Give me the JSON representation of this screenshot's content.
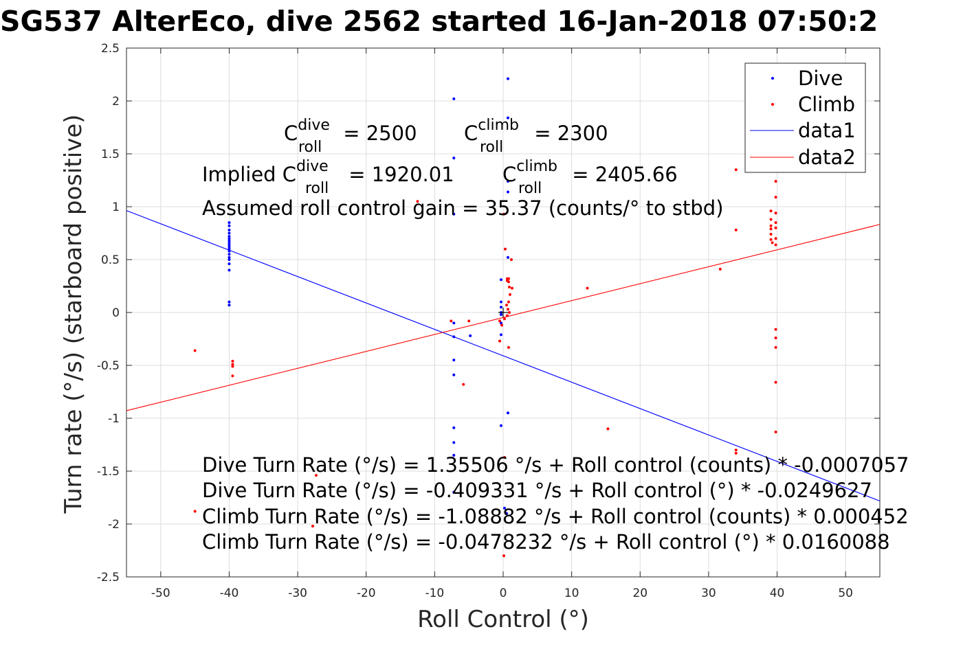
{
  "chart_data": {
    "type": "scatter",
    "title": "SG537 AlterEco, dive 2562 started 16-Jan-2018 07:50:2",
    "xlabel": "Roll Control (°)",
    "ylabel": "Turn rate (°/s) (starboard positive)",
    "xlim": [
      -55,
      55
    ],
    "ylim": [
      -2.5,
      2.5
    ],
    "xticks": [
      -50,
      -40,
      -30,
      -20,
      -10,
      0,
      10,
      20,
      30,
      40,
      50
    ],
    "yticks": [
      -2.5,
      -2,
      -1.5,
      -1,
      -0.5,
      0,
      0.5,
      1,
      1.5,
      2,
      2.5
    ],
    "grid": true,
    "legend_position": "top-right",
    "series": [
      {
        "name": "Dive",
        "kind": "points",
        "color": "#0000ff",
        "points": [
          [
            -40,
            0.85
          ],
          [
            -40,
            0.82
          ],
          [
            -40,
            0.78
          ],
          [
            -40,
            0.75
          ],
          [
            -40,
            0.72
          ],
          [
            -40,
            0.7
          ],
          [
            -40,
            0.68
          ],
          [
            -40,
            0.66
          ],
          [
            -40,
            0.64
          ],
          [
            -40,
            0.62
          ],
          [
            -40,
            0.6
          ],
          [
            -40,
            0.58
          ],
          [
            -40,
            0.55
          ],
          [
            -40,
            0.52
          ],
          [
            -40,
            0.5
          ],
          [
            -40,
            0.46
          ],
          [
            -40,
            0.4
          ],
          [
            -40,
            0.1
          ],
          [
            -40,
            0.07
          ],
          [
            -7.2,
            2.02
          ],
          [
            -7.2,
            1.46
          ],
          [
            -7.2,
            0.93
          ],
          [
            -7.2,
            -0.1
          ],
          [
            -7.2,
            -0.23
          ],
          [
            -7.2,
            -0.45
          ],
          [
            -7.2,
            -0.59
          ],
          [
            -7.2,
            -1.09
          ],
          [
            -7.2,
            -1.23
          ],
          [
            -7.2,
            -1.35
          ],
          [
            -7.2,
            -1.7
          ],
          [
            -4.8,
            -0.22
          ],
          [
            0.7,
            2.21
          ],
          [
            0.7,
            1.84
          ],
          [
            0.7,
            1.24
          ],
          [
            0.7,
            1.14
          ],
          [
            0.7,
            0.52
          ],
          [
            -0.3,
            0.31
          ],
          [
            -0.3,
            0.1
          ],
          [
            -0.3,
            0.05
          ],
          [
            -0.3,
            0.0
          ],
          [
            -0.3,
            -0.02
          ],
          [
            -0.3,
            -0.1
          ],
          [
            -0.3,
            -0.21
          ],
          [
            -0.3,
            -1.07
          ],
          [
            0.7,
            -0.95
          ],
          [
            0.2,
            -1.85
          ],
          [
            0.5,
            -1.9
          ]
        ]
      },
      {
        "name": "Climb",
        "kind": "points",
        "color": "#ff0000",
        "points": [
          [
            -45,
            -0.36
          ],
          [
            -45,
            -1.88
          ],
          [
            -39.5,
            -0.46
          ],
          [
            -39.5,
            -0.49
          ],
          [
            -39.5,
            -0.51
          ],
          [
            -39.5,
            -0.6
          ],
          [
            -27.3,
            -1.54
          ],
          [
            -27.8,
            -2.02
          ],
          [
            -12.5,
            1.05
          ],
          [
            -7.6,
            -0.08
          ],
          [
            -5.8,
            -0.68
          ],
          [
            -5,
            -0.08
          ],
          [
            0.1,
            0.93
          ],
          [
            0.3,
            0.6
          ],
          [
            0.6,
            0.32
          ],
          [
            0.6,
            0.3
          ],
          [
            0.8,
            0.29
          ],
          [
            0.9,
            0.24
          ],
          [
            1.0,
            0.17
          ],
          [
            0.8,
            0.1
          ],
          [
            0.5,
            0.07
          ],
          [
            0.7,
            0.03
          ],
          [
            0.9,
            0.0
          ],
          [
            0.6,
            -0.03
          ],
          [
            0.2,
            -0.06
          ],
          [
            -0.5,
            -0.08
          ],
          [
            -0.2,
            -0.12
          ],
          [
            -0.5,
            -0.27
          ],
          [
            0.8,
            -0.33
          ],
          [
            1.2,
            0.5
          ],
          [
            0.8,
            0.32
          ],
          [
            1.3,
            0.23
          ],
          [
            0.2,
            -1.37
          ],
          [
            0.1,
            -2.3
          ],
          [
            12.3,
            0.23
          ],
          [
            15.3,
            -1.1
          ],
          [
            31.7,
            0.41
          ],
          [
            34,
            1.35
          ],
          [
            34,
            0.78
          ],
          [
            34,
            -1.3
          ],
          [
            34,
            -1.33
          ],
          [
            39.1,
            0.96
          ],
          [
            39.1,
            0.88
          ],
          [
            39.1,
            0.82
          ],
          [
            39.1,
            0.79
          ],
          [
            39.1,
            0.74
          ],
          [
            39.1,
            0.69
          ],
          [
            39.3,
            0.66
          ],
          [
            39.8,
            1.24
          ],
          [
            39.8,
            1.09
          ],
          [
            39.8,
            0.94
          ],
          [
            39.8,
            0.85
          ],
          [
            39.8,
            0.8
          ],
          [
            39.8,
            0.7
          ],
          [
            39.8,
            0.64
          ],
          [
            39.8,
            -0.16
          ],
          [
            39.8,
            -0.24
          ],
          [
            39.8,
            -0.33
          ],
          [
            39.8,
            -0.66
          ],
          [
            39.8,
            -1.13
          ]
        ]
      },
      {
        "name": "data1",
        "kind": "line",
        "color": "#0000ff",
        "intercept": -0.409331,
        "slope": -0.0249627
      },
      {
        "name": "data2",
        "kind": "line",
        "color": "#ff0000",
        "intercept": -0.0478232,
        "slope": 0.0160088
      }
    ],
    "center_marker": {
      "x": 0,
      "y": 0,
      "color": "#000000"
    },
    "annotations": {
      "c_dive_label": "C",
      "c_dive_sup": "dive",
      "c_dive_sub": "roll",
      "c_dive_value": " = 2500",
      "c_climb_label": "C",
      "c_climb_sup": "climb",
      "c_climb_sub": "roll",
      "c_climb_value": " = 2300",
      "implied_prefix": "Implied C",
      "implied_dive_sup": "dive",
      "implied_dive_sub": "roll",
      "implied_dive_value": " = 1920.01",
      "implied_climb_label": "C",
      "implied_climb_sup": "climb",
      "implied_climb_sub": "roll",
      "implied_climb_value": " = 2405.66",
      "gain": "Assumed roll control gain = 35.37 (counts/° to stbd)",
      "eq1": "Dive Turn Rate (°/s) = 1.35506 °/s + Roll control (counts) * -0.0007057",
      "eq2": "Dive Turn Rate (°/s) = -0.409331 °/s + Roll control (°) * -0.0249627",
      "eq3": "Climb Turn Rate (°/s) = -1.08882 °/s + Roll control (counts) * 0.000452",
      "eq4": "Climb Turn Rate (°/s) = -0.0478232 °/s + Roll control (°) * 0.0160088"
    }
  }
}
